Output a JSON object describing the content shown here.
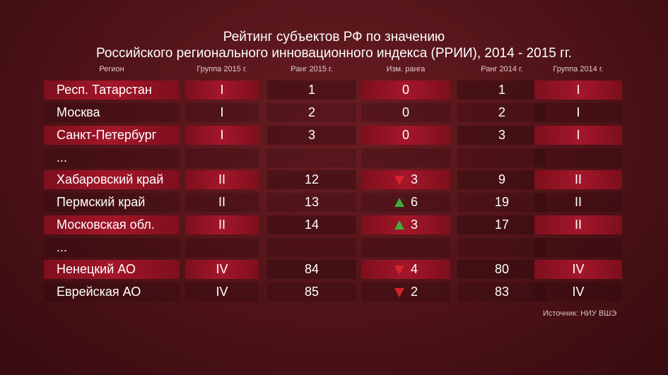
{
  "title": {
    "line1": "Рейтинг субъектов РФ по значению",
    "line2": "Российского регионального инновационного индекса (РРИИ), 2014 - 2015 гг."
  },
  "headers": [
    "Регион",
    "Группа 2015 г.",
    "Ранг 2015 г.",
    "Изм. ранга",
    "Ранг 2014 г.",
    "Группа 2014 г."
  ],
  "colors": {
    "up": "#3fae3a",
    "down": "#d8232a",
    "highlight": "#a4162a"
  },
  "chart_data": {
    "type": "table",
    "columns": [
      "Регион",
      "Группа 2015 г.",
      "Ранг 2015 г.",
      "Изм. ранга",
      "Ранг 2014 г.",
      "Группа 2014 г."
    ],
    "rows": [
      {
        "region": "Респ. Татарстан",
        "group2015": "I",
        "rank2015": "1",
        "change_dir": "none",
        "change": "0",
        "rank2014": "1",
        "group2014": "I"
      },
      {
        "region": "Москва",
        "group2015": "I",
        "rank2015": "2",
        "change_dir": "none",
        "change": "0",
        "rank2014": "2",
        "group2014": "I"
      },
      {
        "region": "Санкт-Петербург",
        "group2015": "I",
        "rank2015": "3",
        "change_dir": "none",
        "change": "0",
        "rank2014": "3",
        "group2014": "I"
      },
      {
        "region": "...",
        "ellipsis": true
      },
      {
        "region": "Хабаровский край",
        "group2015": "II",
        "rank2015": "12",
        "change_dir": "down",
        "change": "3",
        "rank2014": "9",
        "group2014": "II"
      },
      {
        "region": "Пермский край",
        "group2015": "II",
        "rank2015": "13",
        "change_dir": "up",
        "change": "6",
        "rank2014": "19",
        "group2014": "II"
      },
      {
        "region": "Московская обл.",
        "group2015": "II",
        "rank2015": "14",
        "change_dir": "up",
        "change": "3",
        "rank2014": "17",
        "group2014": "II"
      },
      {
        "region": "...",
        "ellipsis": true
      },
      {
        "region": "Ненецкий АО",
        "group2015": "IV",
        "rank2015": "84",
        "change_dir": "down",
        "change": "4",
        "rank2014": "80",
        "group2014": "IV"
      },
      {
        "region": "Еврейская АО",
        "group2015": "IV",
        "rank2015": "85",
        "change_dir": "down",
        "change": "2",
        "rank2014": "83",
        "group2014": "IV"
      }
    ]
  },
  "source": "Источник: НИУ ВШЭ"
}
